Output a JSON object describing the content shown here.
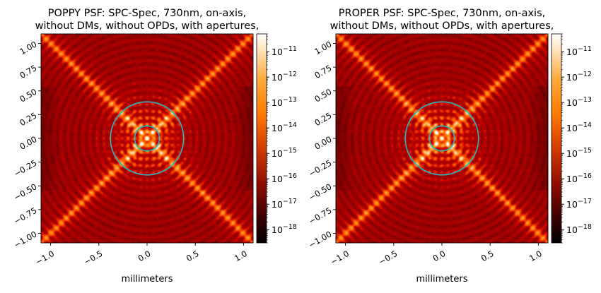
{
  "chart_data": [
    {
      "type": "heatmap",
      "title_line1": "POPPY PSF: SPC-Spec, 730nm, on-axis,",
      "title_line2": "without DMs, without OPDs, with apertures,",
      "xlabel": "millimeters",
      "ylabel": "",
      "xlim": [
        -1.1,
        1.1
      ],
      "ylim": [
        -1.1,
        1.1
      ],
      "x_ticks": [
        "−1.0",
        "−0.5",
        "0.0",
        "0.5",
        "1.0"
      ],
      "x_tick_values": [
        -1.0,
        -0.5,
        0.0,
        0.5,
        1.0
      ],
      "y_ticks": [
        "1.00",
        "0.75",
        "0.50",
        "0.25",
        "0.00",
        "−0.25",
        "−0.50",
        "−0.75",
        "−1.00"
      ],
      "y_tick_values": [
        1.0,
        0.75,
        0.5,
        0.25,
        0.0,
        -0.25,
        -0.5,
        -0.75,
        -1.0
      ],
      "colormap": "gist_heat",
      "colorbar_scale": "log",
      "colorbar_range": [
        3e-19,
        5e-11
      ],
      "colorbar_ticks": [
        {
          "base": "10",
          "exp": "−11",
          "value": 1e-11
        },
        {
          "base": "10",
          "exp": "−12",
          "value": 1e-12
        },
        {
          "base": "10",
          "exp": "−13",
          "value": 1e-13
        },
        {
          "base": "10",
          "exp": "−14",
          "value": 1e-14
        },
        {
          "base": "10",
          "exp": "−15",
          "value": 1e-15
        },
        {
          "base": "10",
          "exp": "−16",
          "value": 1e-16
        },
        {
          "base": "10",
          "exp": "−17",
          "value": 1e-17
        },
        {
          "base": "10",
          "exp": "−18",
          "value": 1e-18
        }
      ],
      "circles_mm": [
        0.13,
        0.38
      ],
      "circle_color": "#22b8c4"
    },
    {
      "type": "heatmap",
      "title_line1": "PROPER PSF: SPC-Spec, 730nm, on-axis,",
      "title_line2": "without DMs, without OPDs, with apertures,",
      "xlabel": "millimeters",
      "ylabel": "",
      "xlim": [
        -1.1,
        1.1
      ],
      "ylim": [
        -1.1,
        1.1
      ],
      "x_ticks": [
        "−1.0",
        "−0.5",
        "0.0",
        "0.5",
        "1.0"
      ],
      "x_tick_values": [
        -1.0,
        -0.5,
        0.0,
        0.5,
        1.0
      ],
      "y_ticks": [
        "1.00",
        "0.75",
        "0.50",
        "0.25",
        "0.00",
        "−0.25",
        "−0.50",
        "−0.75",
        "−1.00"
      ],
      "y_tick_values": [
        1.0,
        0.75,
        0.5,
        0.25,
        0.0,
        -0.25,
        -0.5,
        -0.75,
        -1.0
      ],
      "colormap": "gist_heat",
      "colorbar_scale": "log",
      "colorbar_range": [
        3e-19,
        5e-11
      ],
      "colorbar_ticks": [
        {
          "base": "10",
          "exp": "−11",
          "value": 1e-11
        },
        {
          "base": "10",
          "exp": "−12",
          "value": 1e-12
        },
        {
          "base": "10",
          "exp": "−13",
          "value": 1e-13
        },
        {
          "base": "10",
          "exp": "−14",
          "value": 1e-14
        },
        {
          "base": "10",
          "exp": "−15",
          "value": 1e-15
        },
        {
          "base": "10",
          "exp": "−16",
          "value": 1e-16
        },
        {
          "base": "10",
          "exp": "−17",
          "value": 1e-17
        },
        {
          "base": "10",
          "exp": "−18",
          "value": 1e-18
        }
      ],
      "circles_mm": [
        0.13,
        0.38
      ],
      "circle_color": "#22b8c4"
    }
  ]
}
